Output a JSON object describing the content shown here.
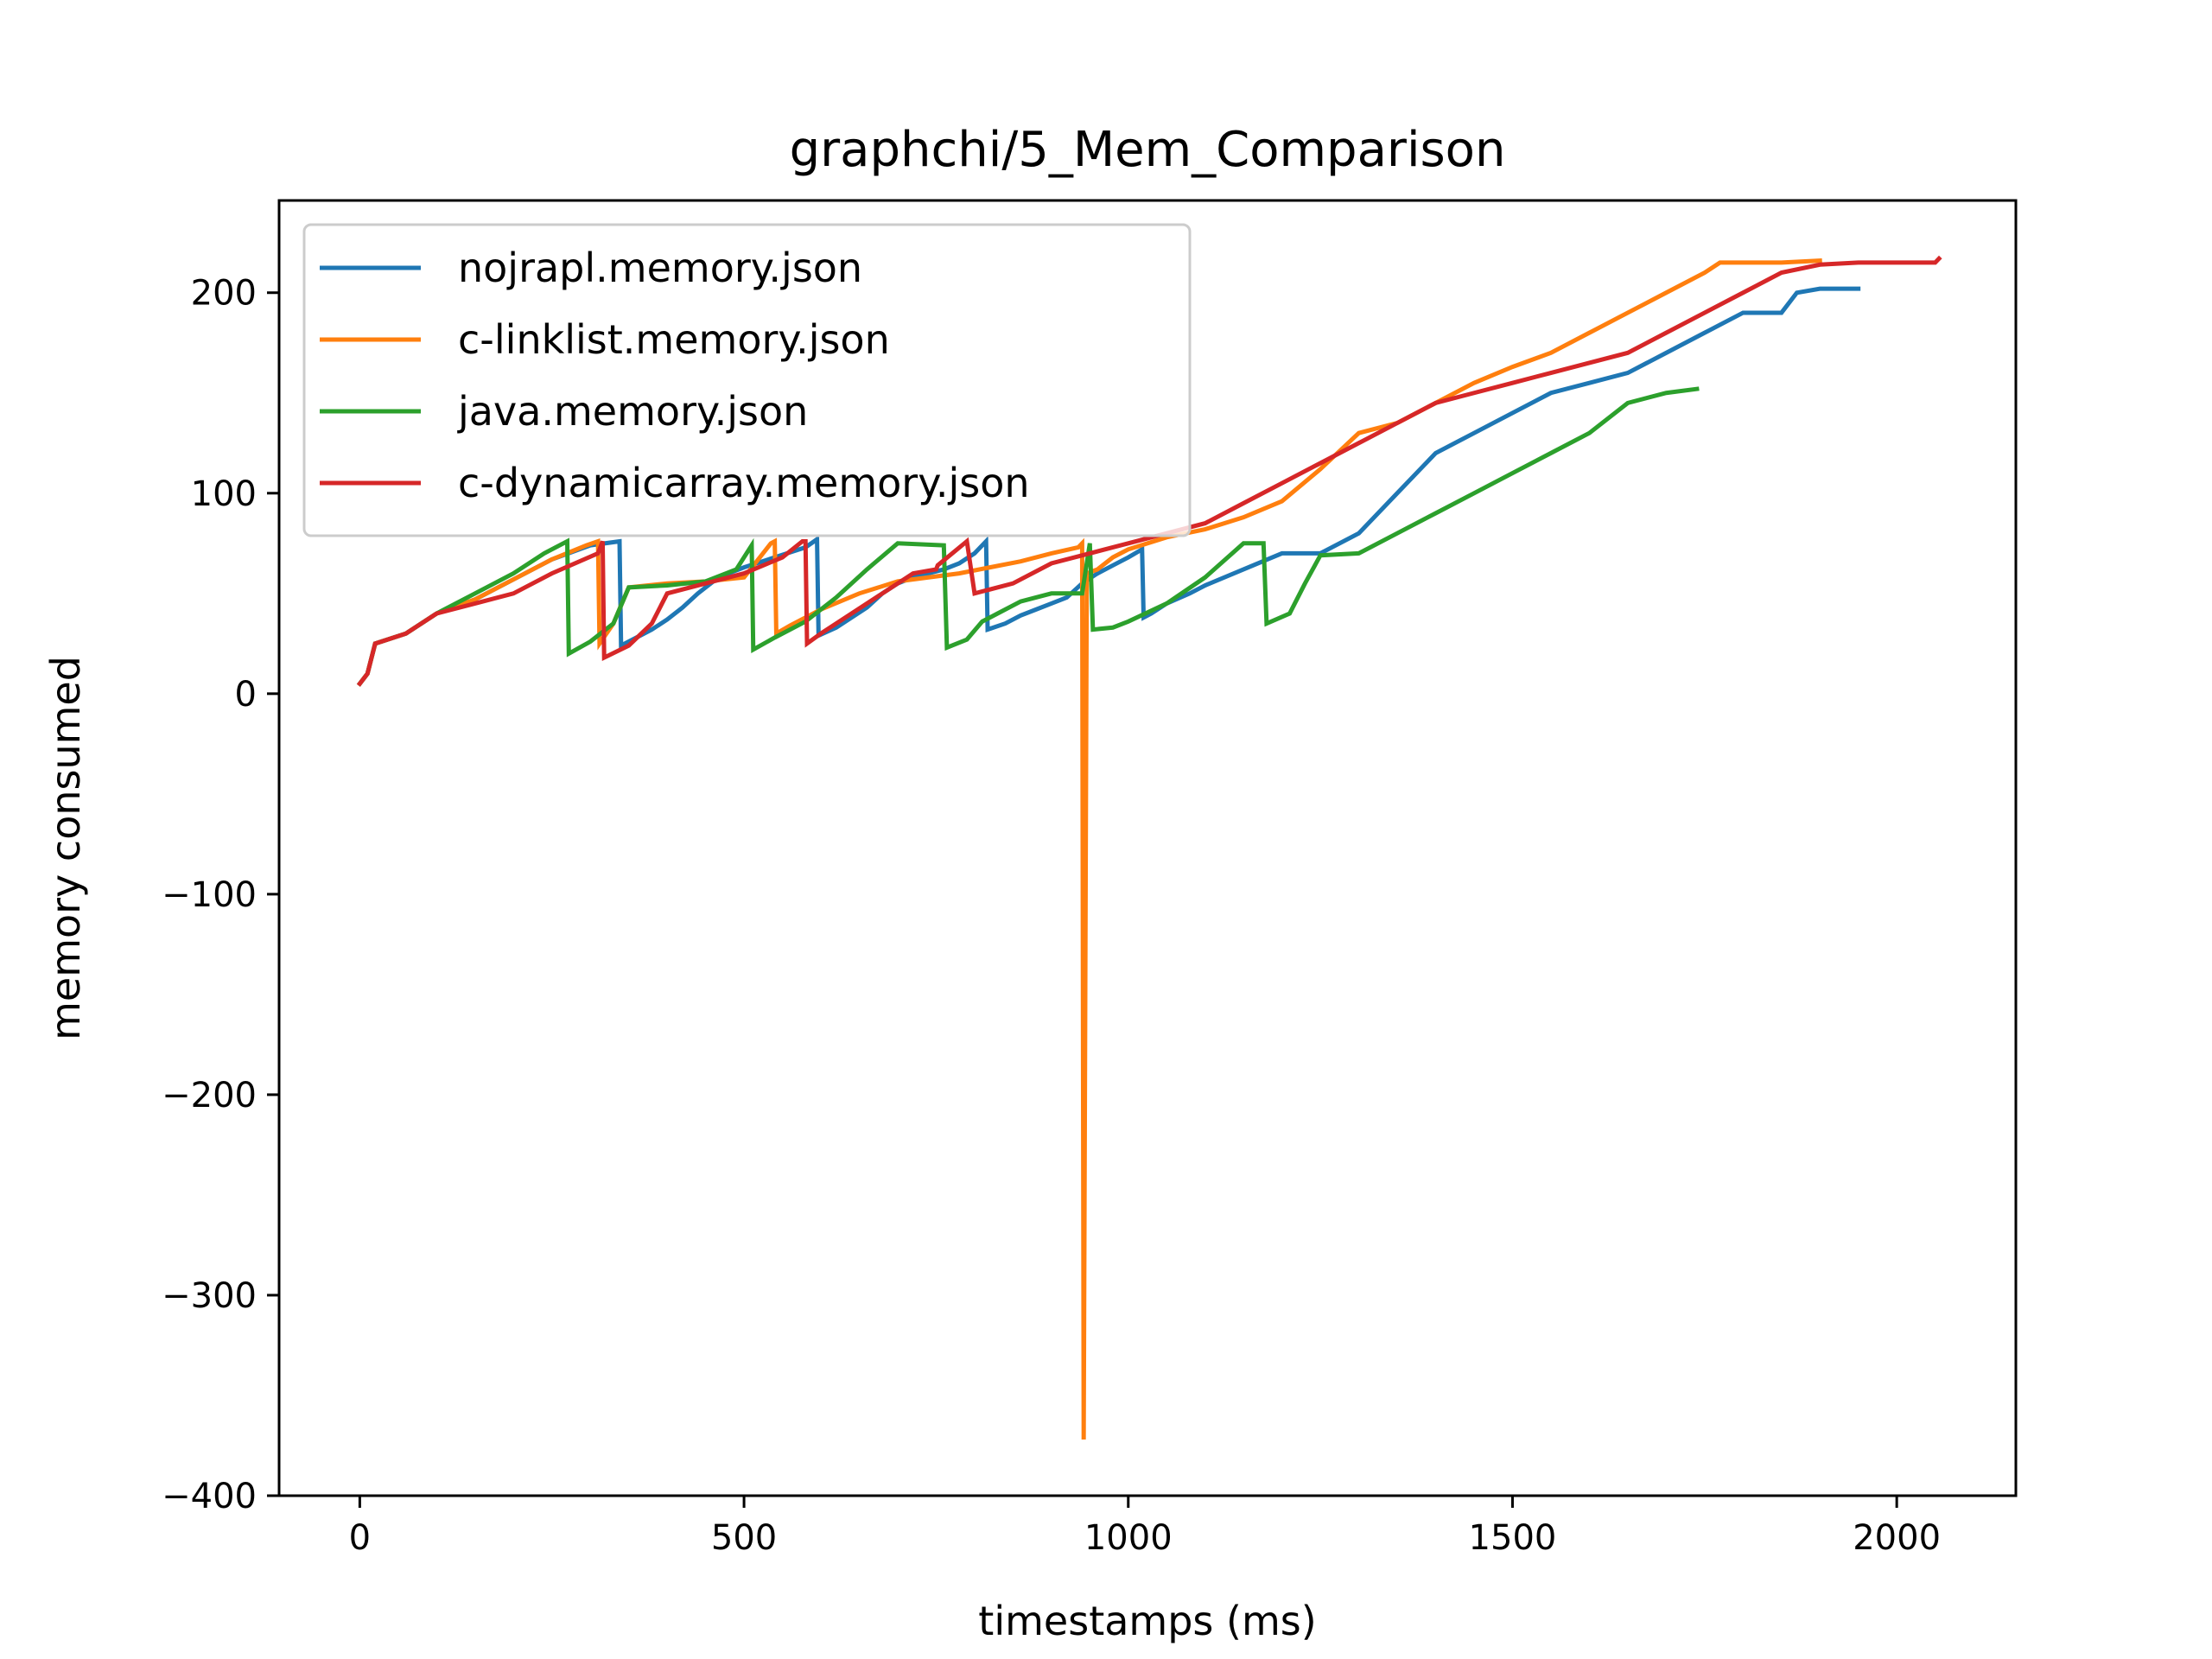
{
  "chart_data": {
    "type": "line",
    "title": "graphchi/5_Mem_Comparison",
    "xlabel": "timestamps (ms)",
    "ylabel": "memory consumed",
    "xlim": [
      -105,
      2155
    ],
    "ylim": [
      -400,
      246
    ],
    "xticks": [
      0,
      500,
      1000,
      1500,
      2000
    ],
    "xtick_labels": [
      "0",
      "500",
      "1000",
      "1500",
      "2000"
    ],
    "yticks": [
      -400,
      -300,
      -200,
      -100,
      0,
      100,
      200
    ],
    "ytick_labels": [
      "−400",
      "−300",
      "−200",
      "−100",
      "0",
      "100",
      "200"
    ],
    "grid": false,
    "legend_position": "upper-left",
    "series": [
      {
        "name": "nojrapl.memory.json",
        "color": "#1f77b4",
        "x": [
          0,
          10,
          20,
          60,
          100,
          150,
          200,
          250,
          300,
          338,
          340,
          360,
          380,
          400,
          420,
          440,
          460,
          480,
          500,
          540,
          580,
          595,
          597,
          620,
          640,
          660,
          680,
          700,
          720,
          740,
          760,
          780,
          800,
          815,
          817,
          840,
          860,
          880,
          900,
          920,
          940,
          960,
          980,
          1000,
          1018,
          1020,
          1030,
          1050,
          1080,
          1100,
          1150,
          1200,
          1250,
          1300,
          1350,
          1400,
          1450,
          1500,
          1550,
          1600,
          1650,
          1700,
          1750,
          1800,
          1850,
          1870,
          1900,
          1950
        ],
        "y": [
          5,
          10,
          25,
          30,
          40,
          47,
          57,
          67,
          74,
          76,
          24,
          28,
          32,
          37,
          43,
          50,
          56,
          60,
          63,
          68,
          73,
          77,
          29,
          33,
          38,
          43,
          50,
          55,
          58,
          60,
          62,
          65,
          70,
          76,
          32,
          35,
          39,
          42,
          45,
          48,
          55,
          60,
          64,
          68,
          72,
          38,
          40,
          45,
          50,
          54,
          62,
          70,
          70,
          80,
          100,
          120,
          130,
          140,
          150,
          155,
          160,
          170,
          180,
          190,
          190,
          200,
          202,
          202
        ]
      },
      {
        "name": "c-linklist.memory.json",
        "color": "#ff7f0e",
        "x": [
          0,
          10,
          20,
          60,
          100,
          150,
          200,
          250,
          295,
          310,
          312,
          330,
          350,
          400,
          450,
          500,
          535,
          540,
          542,
          560,
          600,
          650,
          700,
          740,
          780,
          820,
          860,
          900,
          935,
          940,
          942,
          946,
          960,
          980,
          1000,
          1050,
          1100,
          1150,
          1200,
          1250,
          1300,
          1350,
          1400,
          1450,
          1500,
          1550,
          1600,
          1650,
          1700,
          1750,
          1770,
          1800,
          1850,
          1900
        ],
        "y": [
          5,
          10,
          25,
          30,
          40,
          47,
          57,
          67,
          74,
          76,
          25,
          35,
          53,
          55,
          56,
          58,
          75,
          76,
          30,
          34,
          42,
          50,
          56,
          58,
          60,
          63,
          66,
          70,
          73,
          75,
          -372,
          60,
          62,
          68,
          72,
          78,
          82,
          88,
          96,
          112,
          130,
          135,
          145,
          155,
          163,
          170,
          180,
          190,
          200,
          210,
          215,
          215,
          215,
          216
        ]
      },
      {
        "name": "java.memory.json",
        "color": "#2ca02c",
        "x": [
          0,
          10,
          20,
          60,
          100,
          150,
          200,
          240,
          270,
          272,
          300,
          330,
          350,
          400,
          450,
          490,
          510,
          512,
          540,
          580,
          620,
          660,
          700,
          760,
          764,
          790,
          810,
          830,
          860,
          900,
          940,
          950,
          954,
          980,
          1000,
          1050,
          1100,
          1150,
          1176,
          1180,
          1210,
          1230,
          1250,
          1300,
          1350,
          1400,
          1450,
          1500,
          1550,
          1600,
          1650,
          1700,
          1740
        ],
        "y": [
          5,
          10,
          25,
          30,
          40,
          50,
          60,
          70,
          76,
          20,
          26,
          35,
          53,
          54,
          56,
          62,
          74,
          22,
          28,
          36,
          48,
          62,
          75,
          74,
          23,
          27,
          36,
          40,
          46,
          50,
          50,
          75,
          32,
          33,
          36,
          45,
          58,
          75,
          75,
          35,
          40,
          55,
          69,
          70,
          80,
          90,
          100,
          110,
          120,
          130,
          145,
          150,
          152
        ]
      },
      {
        "name": "c-dynamicarray.memory.json",
        "color": "#d62728",
        "x": [
          0,
          10,
          20,
          60,
          100,
          150,
          200,
          250,
          310,
          316,
          318,
          350,
          380,
          400,
          450,
          500,
          550,
          576,
          580,
          582,
          600,
          640,
          680,
          720,
          750,
          752,
          790,
          800,
          850,
          900,
          950,
          1000,
          1050,
          1100,
          1150,
          1200,
          1250,
          1300,
          1350,
          1400,
          1450,
          1500,
          1550,
          1600,
          1650,
          1700,
          1750,
          1800,
          1850,
          1900,
          1950,
          2000,
          2050,
          2055
        ],
        "y": [
          5,
          10,
          25,
          30,
          40,
          45,
          50,
          60,
          70,
          76,
          18,
          24,
          35,
          50,
          55,
          60,
          68,
          76,
          76,
          25,
          30,
          40,
          50,
          60,
          62,
          64,
          76,
          50,
          55,
          65,
          70,
          75,
          80,
          85,
          95,
          105,
          115,
          125,
          135,
          145,
          150,
          155,
          160,
          165,
          170,
          180,
          190,
          200,
          210,
          214,
          215,
          215,
          215,
          217
        ]
      }
    ]
  }
}
